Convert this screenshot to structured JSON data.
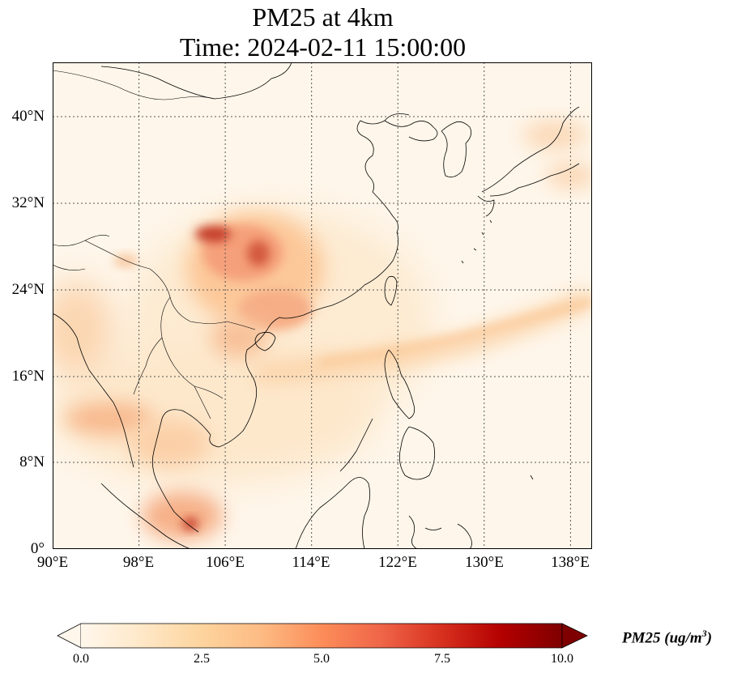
{
  "title": {
    "line1": "PM25 at 4km",
    "line2": "Time: 2024-02-11 15:00:00"
  },
  "map": {
    "extent": {
      "lon": [
        90,
        140
      ],
      "lat": [
        0,
        45
      ]
    },
    "lat_ticks": [
      "40°N",
      "32°N",
      "24°N",
      "16°N",
      "8°N",
      "0°"
    ],
    "lon_ticks": [
      "90°E",
      "98°E",
      "106°E",
      "114°E",
      "122°E",
      "130°E",
      "138°E"
    ],
    "gridlines": true
  },
  "colorbar": {
    "label": "PM25 (ug/m",
    "label_exponent": "3",
    "label_close": ")",
    "ticks": [
      "0.0",
      "2.5",
      "5.0",
      "7.5",
      "10.0"
    ],
    "colormap": "OrRd",
    "extend": "both",
    "colors": [
      "#fff7ec",
      "#fee8c8",
      "#fdd49e",
      "#fdbb84",
      "#fc8d59",
      "#ef6548",
      "#d7301f",
      "#b30000",
      "#7f0000"
    ]
  }
}
